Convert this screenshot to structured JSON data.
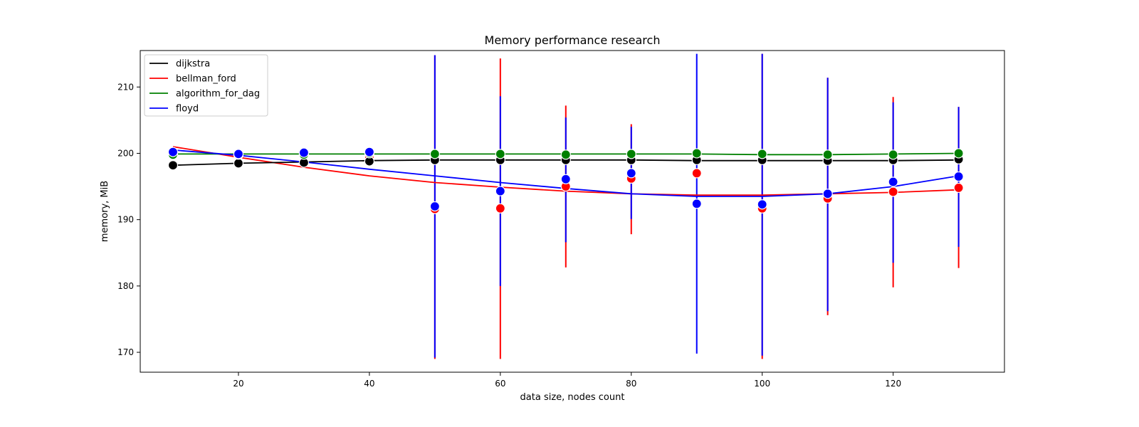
{
  "chart_data": {
    "type": "scatter",
    "title": "Memory performance research",
    "xlabel": "data size, nodes count",
    "ylabel": "memory, MiB",
    "xlim": [
      5,
      137
    ],
    "ylim": [
      167,
      215.5
    ],
    "xticks": [
      20,
      40,
      60,
      80,
      100,
      120
    ],
    "yticks": [
      170,
      180,
      190,
      200,
      210
    ],
    "grid": false,
    "legend_position": "top-left",
    "x": [
      10,
      20,
      30,
      40,
      50,
      60,
      70,
      80,
      90,
      100,
      110,
      120,
      130
    ],
    "series": [
      {
        "name": "bellman_ford",
        "color": "#ff0000",
        "points": [
          200.0,
          199.8,
          199.8,
          199.5,
          191.6,
          191.7,
          195.0,
          196.2,
          197.0,
          191.7,
          193.2,
          194.2,
          194.8
        ],
        "fit": [
          201.0,
          199.4,
          197.9,
          196.6,
          195.6,
          194.9,
          194.3,
          193.9,
          193.7,
          193.7,
          193.9,
          194.1,
          194.5
        ],
        "err_low": [
          null,
          null,
          null,
          null,
          169.0,
          169.0,
          182.8,
          187.8,
          null,
          169.0,
          175.6,
          179.8,
          182.7
        ],
        "err_high": [
          null,
          null,
          null,
          null,
          214.8,
          214.3,
          207.2,
          204.4,
          null,
          215.0,
          211.4,
          208.5,
          207.0
        ]
      },
      {
        "name": "dijkstra",
        "color": "#000000",
        "points": [
          198.2,
          198.5,
          198.6,
          198.8,
          199.0,
          199.0,
          199.0,
          199.0,
          199.0,
          199.0,
          198.9,
          199.0,
          199.1
        ],
        "fit": [
          198.2,
          198.5,
          198.7,
          198.9,
          199.0,
          199.0,
          199.0,
          199.0,
          198.9,
          198.9,
          198.9,
          198.9,
          199.0
        ]
      },
      {
        "name": "algorithm_for_dag",
        "color": "#008000",
        "points": [
          199.8,
          199.8,
          199.8,
          200.0,
          199.9,
          199.9,
          199.8,
          199.9,
          200.0,
          199.9,
          199.8,
          199.8,
          200.0
        ],
        "fit": [
          199.9,
          199.9,
          199.9,
          199.9,
          199.9,
          199.9,
          199.9,
          199.9,
          199.9,
          199.8,
          199.8,
          199.9,
          200.0
        ]
      },
      {
        "name": "floyd",
        "color": "#0000ff",
        "points": [
          200.2,
          199.9,
          200.1,
          200.2,
          192.0,
          194.3,
          196.1,
          197.0,
          192.4,
          192.3,
          193.9,
          195.7,
          196.5
        ],
        "fit": [
          200.5,
          199.7,
          198.7,
          197.6,
          196.6,
          195.6,
          194.7,
          193.9,
          193.5,
          193.5,
          193.9,
          195.0,
          196.6
        ],
        "err_low": [
          null,
          null,
          null,
          null,
          169.2,
          180.0,
          186.6,
          190.1,
          169.8,
          169.5,
          176.2,
          183.5,
          185.9
        ],
        "err_high": [
          null,
          null,
          null,
          null,
          214.8,
          208.6,
          205.4,
          204.0,
          215.0,
          215.0,
          211.4,
          207.7,
          207.0
        ]
      }
    ],
    "legend_order": [
      "dijkstra",
      "bellman_ford",
      "algorithm_for_dag",
      "floyd"
    ]
  }
}
